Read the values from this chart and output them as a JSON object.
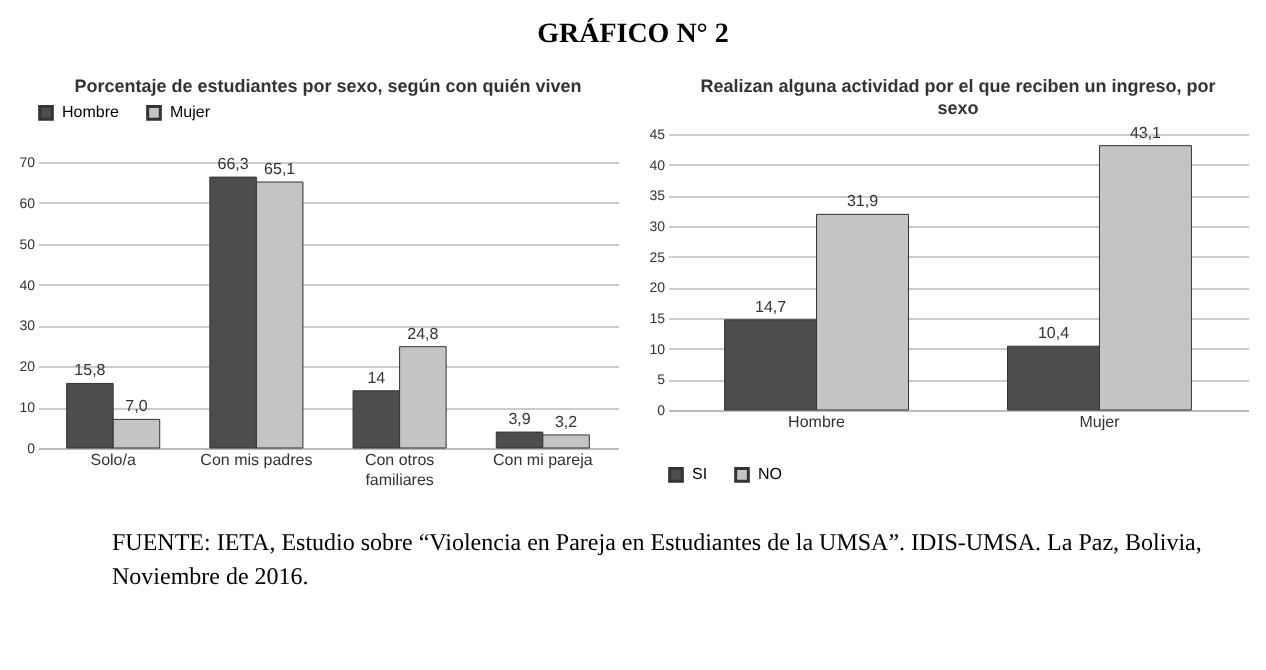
{
  "chart_data": [
    {
      "type": "bar",
      "title": "Porcentaje de estudiantes por sexo, según con quién viven",
      "annotations": [
        "GRÁFICO N° 2"
      ],
      "categories": [
        "Solo/a",
        "Con mis padres",
        "Con otros familiares",
        "Con mi pareja"
      ],
      "series": [
        {
          "name": "Hombre",
          "color": "#4d4d4d",
          "values": [
            15.8,
            66.3,
            14,
            3.9
          ],
          "value_labels": [
            "15,8",
            "66,3",
            "14",
            "3,9"
          ]
        },
        {
          "name": "Mujer",
          "color": "#c4c4c4",
          "values": [
            7.0,
            65.1,
            24.8,
            3.2
          ],
          "value_labels": [
            "7,0",
            "65,1",
            "24,8",
            "3,2"
          ]
        }
      ],
      "ylim": [
        0,
        70
      ],
      "yticks": [
        0,
        10,
        20,
        30,
        40,
        50,
        60,
        70
      ],
      "grid": "y",
      "legend": "top"
    },
    {
      "type": "bar",
      "title": "Realizan alguna actividad por el que reciben un ingreso, por sexo",
      "annotations": [
        "FUENTE: IETA, Estudio sobre “Violencia en Pareja en Estudiantes de la UMSA”. IDIS-UMSA. La Paz, Bolivia, Noviembre de 2016."
      ],
      "categories": [
        "Hombre",
        "Mujer"
      ],
      "series": [
        {
          "name": "SI",
          "color": "#4d4d4d",
          "values": [
            14.7,
            10.4
          ],
          "value_labels": [
            "14,7",
            "10,4"
          ]
        },
        {
          "name": "NO",
          "color": "#c4c4c4",
          "values": [
            31.9,
            43.1
          ],
          "value_labels": [
            "31,9",
            "43,1"
          ]
        }
      ],
      "ylim": [
        0,
        45
      ],
      "yticks": [
        0,
        5,
        10,
        15,
        20,
        25,
        30,
        35,
        40,
        45
      ],
      "grid": "y",
      "legend": "bottom"
    }
  ]
}
